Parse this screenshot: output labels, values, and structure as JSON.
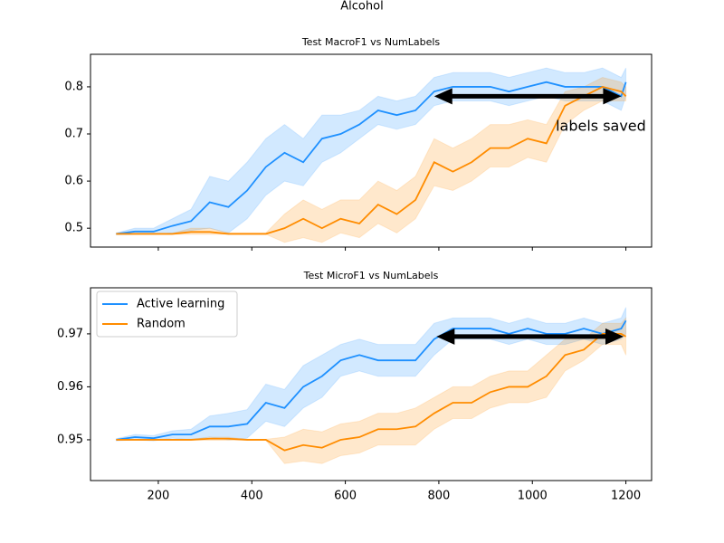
{
  "title": "Alcohol",
  "chart_data": [
    {
      "type": "line",
      "title": "Test MacroF1 vs NumLabels",
      "x": [
        110,
        150,
        190,
        230,
        270,
        310,
        350,
        390,
        430,
        470,
        510,
        550,
        590,
        630,
        670,
        710,
        750,
        790,
        830,
        870,
        910,
        950,
        990,
        1030,
        1070,
        1110,
        1150,
        1190,
        1200
      ],
      "series": [
        {
          "color": "#1e90ff",
          "values": [
            0.488,
            0.493,
            0.493,
            0.505,
            0.515,
            0.555,
            0.545,
            0.58,
            0.63,
            0.66,
            0.64,
            0.69,
            0.7,
            0.72,
            0.75,
            0.74,
            0.75,
            0.79,
            0.8,
            0.8,
            0.8,
            0.79,
            0.8,
            0.81,
            0.8,
            0.8,
            0.8,
            0.78,
            0.81
          ],
          "lower": [
            0.486,
            0.487,
            0.487,
            0.49,
            0.495,
            0.5,
            0.49,
            0.52,
            0.57,
            0.6,
            0.59,
            0.64,
            0.66,
            0.69,
            0.72,
            0.71,
            0.72,
            0.76,
            0.77,
            0.77,
            0.77,
            0.76,
            0.77,
            0.78,
            0.77,
            0.77,
            0.77,
            0.75,
            0.78
          ],
          "upper": [
            0.49,
            0.5,
            0.5,
            0.52,
            0.54,
            0.61,
            0.6,
            0.64,
            0.69,
            0.72,
            0.69,
            0.74,
            0.74,
            0.75,
            0.78,
            0.77,
            0.78,
            0.82,
            0.83,
            0.83,
            0.83,
            0.82,
            0.83,
            0.84,
            0.83,
            0.83,
            0.84,
            0.82,
            0.84
          ]
        },
        {
          "color": "#ff8c00",
          "values": [
            0.488,
            0.488,
            0.488,
            0.488,
            0.492,
            0.492,
            0.488,
            0.488,
            0.488,
            0.5,
            0.52,
            0.5,
            0.52,
            0.51,
            0.55,
            0.53,
            0.56,
            0.64,
            0.62,
            0.64,
            0.67,
            0.67,
            0.69,
            0.68,
            0.76,
            0.78,
            0.8,
            0.79,
            0.78
          ],
          "lower": [
            0.487,
            0.487,
            0.487,
            0.487,
            0.487,
            0.487,
            0.487,
            0.487,
            0.487,
            0.47,
            0.48,
            0.47,
            0.49,
            0.48,
            0.51,
            0.49,
            0.52,
            0.59,
            0.58,
            0.6,
            0.63,
            0.63,
            0.65,
            0.64,
            0.72,
            0.75,
            0.77,
            0.77,
            0.77
          ],
          "upper": [
            0.489,
            0.489,
            0.489,
            0.489,
            0.5,
            0.5,
            0.49,
            0.49,
            0.49,
            0.53,
            0.56,
            0.54,
            0.56,
            0.56,
            0.6,
            0.58,
            0.61,
            0.69,
            0.67,
            0.69,
            0.72,
            0.72,
            0.73,
            0.72,
            0.79,
            0.8,
            0.82,
            0.81,
            0.8
          ]
        }
      ],
      "xlim": [
        55,
        1255
      ],
      "ylim": [
        0.46,
        0.869
      ],
      "xticks": [
        200,
        400,
        600,
        800,
        1000,
        1200
      ],
      "xticklabels": false,
      "yticks": [
        0.5,
        0.6,
        0.7,
        0.8
      ],
      "arrow": {
        "x": [
          790,
          1190
        ],
        "y": 0.78
      },
      "annotation": {
        "text": "labels saved",
        "x": 1050,
        "y": 0.715
      }
    },
    {
      "type": "line",
      "title": "Test MicroF1 vs NumLabels",
      "x": [
        110,
        150,
        190,
        230,
        270,
        310,
        350,
        390,
        430,
        470,
        510,
        550,
        590,
        630,
        670,
        710,
        750,
        790,
        830,
        870,
        910,
        950,
        990,
        1030,
        1070,
        1110,
        1150,
        1190,
        1200
      ],
      "series": [
        {
          "name": "Active learning",
          "color": "#1e90ff",
          "values": [
            0.95,
            0.9505,
            0.9503,
            0.951,
            0.951,
            0.9525,
            0.9525,
            0.953,
            0.957,
            0.956,
            0.96,
            0.962,
            0.965,
            0.966,
            0.965,
            0.965,
            0.965,
            0.969,
            0.971,
            0.971,
            0.971,
            0.97,
            0.971,
            0.97,
            0.97,
            0.971,
            0.97,
            0.971,
            0.9725
          ],
          "lower": [
            0.9498,
            0.95,
            0.9498,
            0.9503,
            0.95,
            0.9505,
            0.95,
            0.9503,
            0.9535,
            0.9525,
            0.956,
            0.958,
            0.962,
            0.963,
            0.962,
            0.962,
            0.962,
            0.966,
            0.969,
            0.969,
            0.969,
            0.968,
            0.969,
            0.968,
            0.968,
            0.969,
            0.968,
            0.969,
            0.97
          ],
          "upper": [
            0.9502,
            0.951,
            0.9508,
            0.9517,
            0.952,
            0.9545,
            0.955,
            0.9557,
            0.9605,
            0.9595,
            0.964,
            0.966,
            0.968,
            0.969,
            0.968,
            0.968,
            0.968,
            0.972,
            0.973,
            0.973,
            0.973,
            0.972,
            0.973,
            0.972,
            0.972,
            0.973,
            0.972,
            0.973,
            0.975
          ]
        },
        {
          "name": "Random",
          "color": "#ff8c00",
          "values": [
            0.95,
            0.95,
            0.95,
            0.95,
            0.95,
            0.9502,
            0.9502,
            0.95,
            0.95,
            0.948,
            0.949,
            0.9485,
            0.95,
            0.9505,
            0.952,
            0.952,
            0.9525,
            0.955,
            0.957,
            0.957,
            0.959,
            0.96,
            0.96,
            0.962,
            0.966,
            0.967,
            0.97,
            0.97,
            0.9695
          ],
          "lower": [
            0.9499,
            0.9499,
            0.9499,
            0.9499,
            0.9499,
            0.9499,
            0.9499,
            0.9499,
            0.9499,
            0.9455,
            0.946,
            0.9455,
            0.947,
            0.9475,
            0.949,
            0.949,
            0.949,
            0.952,
            0.954,
            0.954,
            0.956,
            0.957,
            0.957,
            0.958,
            0.963,
            0.965,
            0.968,
            0.968,
            0.966
          ],
          "upper": [
            0.9501,
            0.9501,
            0.9501,
            0.9501,
            0.9501,
            0.9505,
            0.9505,
            0.9501,
            0.9501,
            0.9505,
            0.952,
            0.9515,
            0.953,
            0.9535,
            0.955,
            0.955,
            0.956,
            0.958,
            0.96,
            0.96,
            0.962,
            0.963,
            0.963,
            0.966,
            0.969,
            0.969,
            0.972,
            0.972,
            0.973
          ]
        }
      ],
      "xlim": [
        55,
        1255
      ],
      "ylim": [
        0.9423,
        0.9787
      ],
      "xticks": [
        200,
        400,
        600,
        800,
        1000,
        1200
      ],
      "yticks": [
        0.95,
        0.96,
        0.97
      ],
      "legend": "upper left",
      "arrow": {
        "x": [
          795,
          1195
        ],
        "y": 0.9695
      }
    }
  ]
}
